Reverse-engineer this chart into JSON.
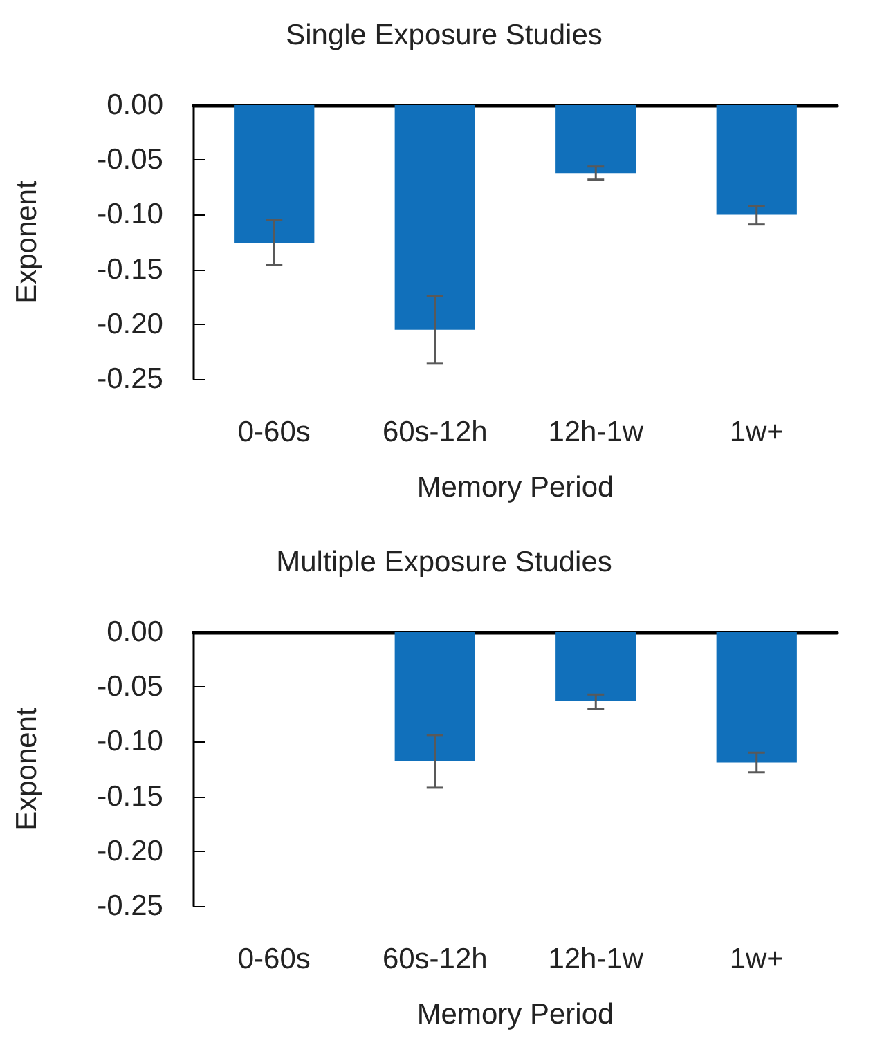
{
  "chart_data": [
    {
      "type": "bar",
      "title": "Single Exposure Studies",
      "xlabel": "Memory Period",
      "ylabel": "Exponent",
      "categories": [
        "0-60s",
        "60s-12h",
        "12h-1w",
        "1w+"
      ],
      "values": [
        -0.126,
        -0.205,
        -0.062,
        -0.1
      ],
      "errors": [
        [
          -0.146,
          -0.105
        ],
        [
          -0.236,
          -0.174
        ],
        [
          -0.068,
          -0.056
        ],
        [
          -0.109,
          -0.092
        ]
      ],
      "color": "#1170bb",
      "ylim": [
        -0.25,
        0
      ],
      "yticks": [
        {
          "value": -0.25,
          "label": "-0.25"
        },
        {
          "value": -0.2,
          "label": "-0.20"
        },
        {
          "value": -0.15,
          "label": "-0.15"
        },
        {
          "value": -0.1,
          "label": "-0.10"
        },
        {
          "value": -0.05,
          "label": "-0.05"
        },
        {
          "value": 0,
          "label": "0.00"
        }
      ]
    },
    {
      "type": "bar",
      "title": "Multiple Exposure Studies",
      "xlabel": "Memory Period",
      "ylabel": "Exponent",
      "categories": [
        "0-60s",
        "60s-12h",
        "12h-1w",
        "1w+"
      ],
      "values": [
        null,
        -0.118,
        -0.063,
        -0.119
      ],
      "errors": [
        null,
        [
          -0.142,
          -0.094
        ],
        [
          -0.07,
          -0.057
        ],
        [
          -0.128,
          -0.11
        ]
      ],
      "color": "#1170bb",
      "ylim": [
        -0.25,
        0
      ],
      "yticks": [
        {
          "value": -0.25,
          "label": "-0.25"
        },
        {
          "value": -0.2,
          "label": "-0.20"
        },
        {
          "value": -0.15,
          "label": "-0.15"
        },
        {
          "value": -0.1,
          "label": "-0.10"
        },
        {
          "value": -0.05,
          "label": "-0.05"
        },
        {
          "value": 0,
          "label": "0.00"
        }
      ]
    }
  ]
}
